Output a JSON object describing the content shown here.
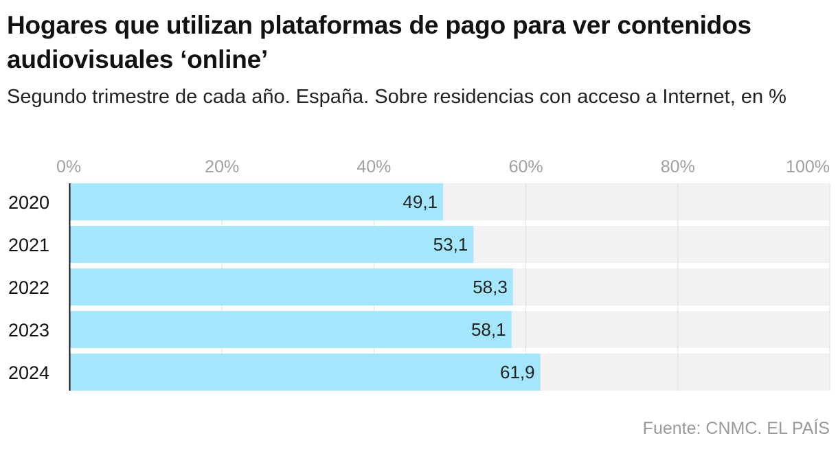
{
  "header": {
    "title": "Hogares que utilizan plataformas de pago para ver contenidos audiovisuales ‘online’",
    "subtitle": "Segundo trimestre de cada año. España. Sobre residencias con acceso a Internet, en %"
  },
  "footer": {
    "source": "Fuente: CNMC. EL PAÍS"
  },
  "colors": {
    "bar": "#a4e6fc",
    "track": "#f2f2f2",
    "grid": "#dcdcdc",
    "axis": "#111111",
    "tick_label": "#a0a0a0"
  },
  "chart_data": {
    "type": "bar",
    "orientation": "horizontal",
    "title": "Hogares que utilizan plataformas de pago para ver contenidos audiovisuales ‘online’",
    "subtitle": "Segundo trimestre de cada año. España. Sobre residencias con acceso a Internet, en %",
    "categories": [
      "2020",
      "2021",
      "2022",
      "2023",
      "2024"
    ],
    "values": [
      49.1,
      53.1,
      58.3,
      58.1,
      61.9
    ],
    "value_labels": [
      "49,1",
      "53,1",
      "58,3",
      "58,1",
      "61,9"
    ],
    "xlim": [
      0,
      100
    ],
    "ticks": [
      0,
      20,
      40,
      60,
      80,
      100
    ],
    "tick_labels": [
      "0%",
      "20%",
      "40%",
      "60%",
      "80%",
      "100%"
    ],
    "xlabel": "",
    "ylabel": "",
    "grid": true,
    "axis_position": "top"
  }
}
